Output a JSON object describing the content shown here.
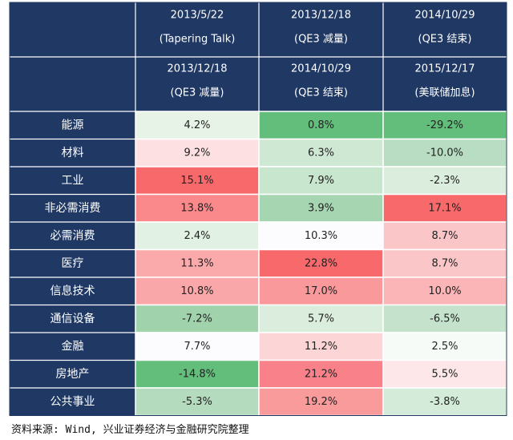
{
  "chart_data": {
    "type": "heatmap",
    "header_fill": "#1f3864",
    "column_headers": [
      {
        "start_date": "2013/5/22",
        "start_event": "(Tapering Talk)",
        "end_date": "2013/12/18",
        "end_event": "(QE3 减量)"
      },
      {
        "start_date": "2013/12/18",
        "start_event": "(QE3 减量)",
        "end_date": "2014/10/29",
        "end_event": "(QE3 结束)"
      },
      {
        "start_date": "2014/10/29",
        "start_event": "(QE3 结束)",
        "end_date": "2015/12/17",
        "end_event": "(美联储加息)"
      }
    ],
    "rows": [
      "能源",
      "材料",
      "工业",
      "非必需消费",
      "必需消费",
      "医疗",
      "信息技术",
      "通信设备",
      "金融",
      "房地产",
      "公共事业"
    ],
    "values": [
      [
        4.2,
        0.8,
        -29.2
      ],
      [
        9.2,
        6.3,
        -10.0
      ],
      [
        15.1,
        7.9,
        -2.3
      ],
      [
        13.8,
        3.9,
        17.1
      ],
      [
        2.4,
        10.3,
        8.7
      ],
      [
        11.3,
        22.8,
        8.7
      ],
      [
        10.8,
        17.0,
        10.0
      ],
      [
        -7.2,
        5.7,
        -6.5
      ],
      [
        7.7,
        11.2,
        2.5
      ],
      [
        -14.8,
        21.2,
        5.5
      ],
      [
        -5.3,
        19.2,
        -3.8
      ]
    ],
    "value_labels": [
      [
        "4.2%",
        "0.8%",
        "-29.2%"
      ],
      [
        "9.2%",
        "6.3%",
        "-10.0%"
      ],
      [
        "15.1%",
        "7.9%",
        "-2.3%"
      ],
      [
        "13.8%",
        "3.9%",
        "17.1%"
      ],
      [
        "2.4%",
        "10.3%",
        "8.7%"
      ],
      [
        "11.3%",
        "22.8%",
        "8.7%"
      ],
      [
        "10.8%",
        "17.0%",
        "10.0%"
      ],
      [
        "-7.2%",
        "5.7%",
        "-6.5%"
      ],
      [
        "7.7%",
        "11.2%",
        "2.5%"
      ],
      [
        "-14.8%",
        "21.2%",
        "5.5%"
      ],
      [
        "-5.3%",
        "19.2%",
        "-3.8%"
      ]
    ],
    "cell_colors": [
      [
        "#e6f3e6",
        "#63be7b",
        "#63be7b"
      ],
      [
        "#fde0e2",
        "#cfe8d4",
        "#b8ddc2"
      ],
      [
        "#f8696b",
        "#c8e5cd",
        "#dbeedd"
      ],
      [
        "#f9898b",
        "#a5d5b1",
        "#f8696b"
      ],
      [
        "#e1f1e3",
        "#fcfcff",
        "#fbc6c8"
      ],
      [
        "#fbaaab",
        "#f8696b",
        "#fbc6c8"
      ],
      [
        "#f9a7a8",
        "#f9999b",
        "#fbb5b7"
      ],
      [
        "#a0d2ac",
        "#dbeedd",
        "#c5e3cc"
      ],
      [
        "#fcfcff",
        "#fcd5d7",
        "#f7fbf8"
      ],
      [
        "#63be7b",
        "#f9818a",
        "#fde7e8"
      ],
      [
        "#b5dbbf",
        "#f99a9b",
        "#d4ebd9"
      ]
    ]
  },
  "footer": {
    "source": "资料来源: Wind, 兴业证券经济与金融研究院整理"
  }
}
